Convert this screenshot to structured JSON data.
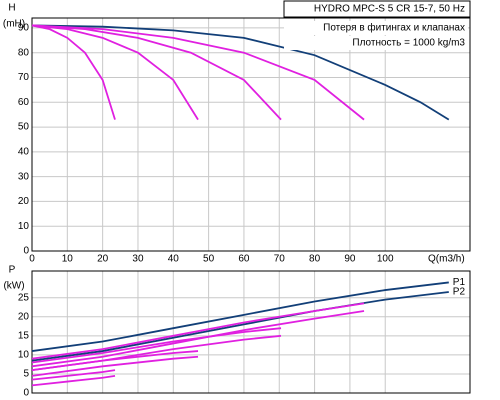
{
  "chart_data": [
    {
      "type": "line",
      "title": "HYDRO MPC-S 5 CR 15-7, 50 Hz",
      "annotations": [
        "Потеря в фитингах и клапанах",
        "Плотность = 1000 kg/m3"
      ],
      "ylabel": "H",
      "yunit": "(mH)",
      "xlabel": "Q(m3/h)",
      "xlim": [
        0,
        124
      ],
      "ylim": [
        0,
        94
      ],
      "xticks": [
        0,
        10,
        20,
        30,
        40,
        50,
        60,
        70,
        80,
        90,
        100
      ],
      "yticks": [
        0,
        10,
        20,
        30,
        40,
        50,
        60,
        70,
        80,
        90
      ],
      "show_xtick_labels": true,
      "grid": true,
      "series": [
        {
          "color": "#123f78",
          "x": [
            0,
            20,
            40,
            60,
            80,
            100,
            110,
            118
          ],
          "values": [
            91,
            90.5,
            89,
            86,
            79,
            67,
            60,
            53
          ]
        },
        {
          "color": "#e020e0",
          "x": [
            0,
            5,
            10,
            15,
            20,
            23.5
          ],
          "values": [
            91,
            89.5,
            86,
            80,
            69,
            53
          ]
        },
        {
          "color": "#e020e0",
          "x": [
            0,
            10,
            20,
            30,
            40,
            47
          ],
          "values": [
            91,
            89.5,
            86,
            80,
            69,
            53
          ]
        },
        {
          "color": "#e020e0",
          "x": [
            0,
            15,
            30,
            45,
            60,
            70.5
          ],
          "values": [
            91,
            89.5,
            86,
            80,
            69,
            53
          ]
        },
        {
          "color": "#e020e0",
          "x": [
            0,
            20,
            40,
            60,
            80,
            94
          ],
          "values": [
            91,
            89.5,
            86,
            80,
            69,
            53
          ]
        }
      ]
    },
    {
      "type": "line",
      "ylabel": "P",
      "yunit": "(kW)",
      "xlim": [
        0,
        124
      ],
      "ylim": [
        0,
        32
      ],
      "xticks": [
        0,
        10,
        20,
        30,
        40,
        50,
        60,
        70,
        80,
        90,
        100
      ],
      "yticks": [
        0,
        5,
        10,
        15,
        20,
        25
      ],
      "show_xtick_labels": false,
      "grid": true,
      "series": [
        {
          "name": "P1",
          "color": "#123f78",
          "x": [
            0,
            20,
            40,
            60,
            80,
            100,
            118
          ],
          "values": [
            11,
            13.5,
            17,
            20.5,
            24,
            27,
            29
          ]
        },
        {
          "name": "P2",
          "color": "#123f78",
          "x": [
            0,
            20,
            40,
            60,
            80,
            100,
            118
          ],
          "values": [
            8.5,
            11,
            14.5,
            18,
            21.5,
            24.5,
            26.5
          ]
        },
        {
          "color": "#e020e0",
          "x": [
            0,
            20,
            40,
            60,
            80,
            94
          ],
          "values": [
            9,
            11.5,
            15,
            18.5,
            21.5,
            23.5
          ]
        },
        {
          "color": "#e020e0",
          "x": [
            0,
            20,
            40,
            60,
            80,
            94
          ],
          "values": [
            7,
            9.5,
            13,
            16.5,
            19.5,
            21.5
          ]
        },
        {
          "color": "#e020e0",
          "x": [
            0,
            20,
            40,
            60,
            70.5
          ],
          "values": [
            8,
            10.5,
            13.5,
            16,
            17
          ]
        },
        {
          "color": "#e020e0",
          "x": [
            0,
            20,
            40,
            60,
            70.5
          ],
          "values": [
            6,
            8.5,
            11.5,
            14,
            15
          ]
        },
        {
          "color": "#e020e0",
          "x": [
            0,
            20,
            40,
            47
          ],
          "values": [
            6,
            8.5,
            10.5,
            11
          ]
        },
        {
          "color": "#e020e0",
          "x": [
            0,
            20,
            40,
            47
          ],
          "values": [
            4.5,
            7,
            9,
            9.5
          ]
        },
        {
          "color": "#e020e0",
          "x": [
            0,
            10,
            20,
            23.5
          ],
          "values": [
            3.5,
            4.5,
            5.5,
            6
          ]
        },
        {
          "color": "#e020e0",
          "x": [
            0,
            10,
            20,
            23.5
          ],
          "values": [
            2,
            3,
            4,
            4.5
          ]
        }
      ]
    }
  ]
}
